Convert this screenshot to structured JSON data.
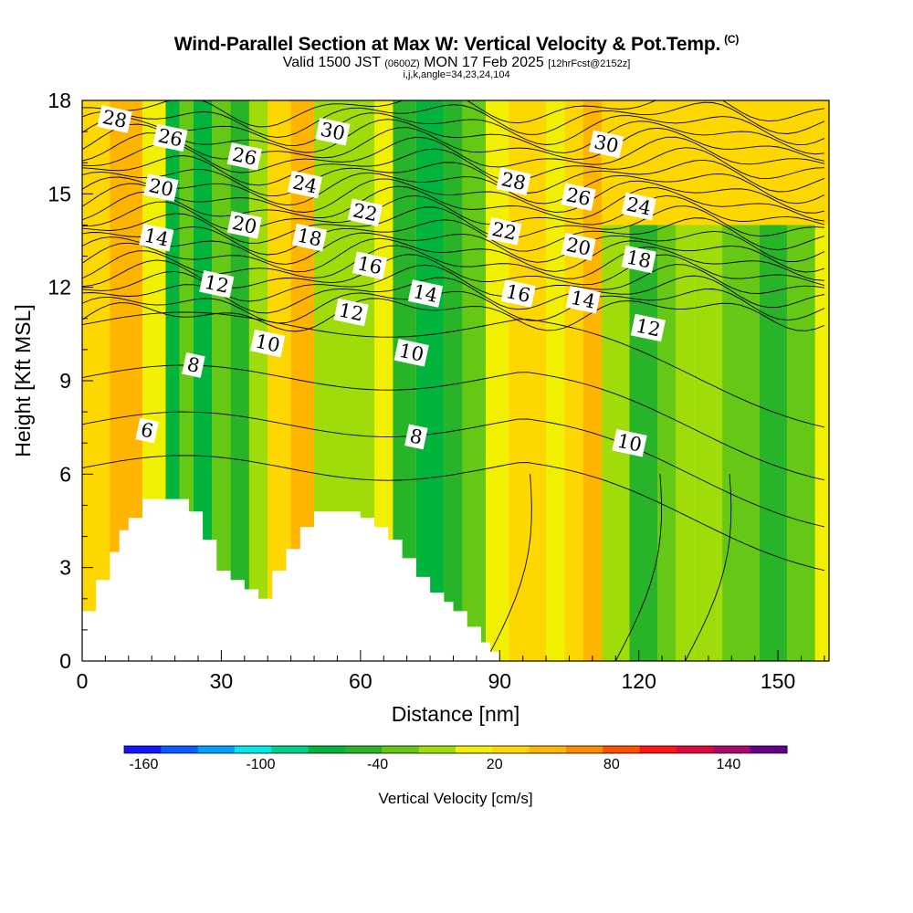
{
  "header": {
    "title": "Wind-Parallel Section at Max W: Vertical Velocity & Pot.Temp.",
    "copyright": "(C)",
    "valid_prefix": "Valid 1500 JST",
    "valid_utc": "(0600Z)",
    "valid_date": "MON 17 Feb 2025",
    "forecast_info": "[12hrFcst@2152z]",
    "grid_info": "i,j,k,angle=34,23,24,104"
  },
  "chart_data": {
    "type": "heatmap",
    "xlabel": "Distance [nm]",
    "ylabel": "Height [Kft MSL]",
    "xlim": [
      0,
      161
    ],
    "ylim": [
      0,
      18
    ],
    "x_ticks": [
      0,
      30,
      60,
      90,
      120,
      150
    ],
    "y_ticks": [
      0,
      3,
      6,
      9,
      12,
      15,
      18
    ],
    "colorbar": {
      "label": "Vertical Velocity [cm/s]",
      "min": -170,
      "max": 170,
      "tick_labels": [
        -160,
        -100,
        -40,
        20,
        80,
        140
      ],
      "colors": [
        "#1414ff",
        "#0a5cff",
        "#00a0ff",
        "#00e8e8",
        "#00d08c",
        "#00b43c",
        "#28b428",
        "#64c814",
        "#a0dc0a",
        "#f0f000",
        "#ffd700",
        "#ffb400",
        "#ff8c00",
        "#ff5000",
        "#ff1414",
        "#dc0a3c",
        "#aa0a6e",
        "#64008c"
      ]
    },
    "vertical_velocity_bands": [
      {
        "x": 0,
        "x_end": 6,
        "w": 30
      },
      {
        "x": 6,
        "x_end": 13,
        "w": 55
      },
      {
        "x": 13,
        "x_end": 18,
        "w": 15
      },
      {
        "x": 18,
        "x_end": 21,
        "w": -60
      },
      {
        "x": 21,
        "x_end": 24,
        "w": -20
      },
      {
        "x": 24,
        "x_end": 28,
        "w": -75
      },
      {
        "x": 28,
        "x_end": 32,
        "w": -20
      },
      {
        "x": 32,
        "x_end": 36,
        "w": -40
      },
      {
        "x": 36,
        "x_end": 40,
        "w": -10
      },
      {
        "x": 40,
        "x_end": 45,
        "w": 25
      },
      {
        "x": 45,
        "x_end": 50,
        "w": 50
      },
      {
        "x": 50,
        "x_end": 56,
        "w": -5
      },
      {
        "x": 56,
        "x_end": 63,
        "w": -15
      },
      {
        "x": 63,
        "x_end": 67,
        "w": 10
      },
      {
        "x": 67,
        "x_end": 72,
        "w": -40
      },
      {
        "x": 72,
        "x_end": 78,
        "w": -75
      },
      {
        "x": 78,
        "x_end": 82,
        "w": -45
      },
      {
        "x": 82,
        "x_end": 87,
        "w": -20
      },
      {
        "x": 87,
        "x_end": 92,
        "w": 5
      },
      {
        "x": 92,
        "x_end": 100,
        "w": 30
      },
      {
        "x": 100,
        "x_end": 104,
        "w": 15
      },
      {
        "x": 104,
        "x_end": 108,
        "w": 25
      },
      {
        "x": 108,
        "x_end": 112,
        "w": 40
      },
      {
        "x": 112,
        "x_end": 118,
        "w": -5
      },
      {
        "x": 118,
        "x_end": 124,
        "w": -45
      },
      {
        "x": 124,
        "x_end": 128,
        "w": -30
      },
      {
        "x": 128,
        "x_end": 132,
        "w": -10
      },
      {
        "x": 132,
        "x_end": 138,
        "w": -5
      },
      {
        "x": 138,
        "x_end": 146,
        "w": -25
      },
      {
        "x": 146,
        "x_end": 152,
        "w": -40
      },
      {
        "x": 152,
        "x_end": 158,
        "w": -20
      },
      {
        "x": 158,
        "x_end": 161,
        "w": 0
      }
    ],
    "upper_background": {
      "x": 112,
      "x_end": 161,
      "y": 14,
      "w": 25
    },
    "terrain": [
      [
        0,
        1.6
      ],
      [
        3,
        2.6
      ],
      [
        6,
        3.5
      ],
      [
        8,
        4.2
      ],
      [
        10,
        4.6
      ],
      [
        13,
        5.2
      ],
      [
        16,
        5.2
      ],
      [
        20,
        5.2
      ],
      [
        23,
        4.8
      ],
      [
        26,
        3.9
      ],
      [
        29,
        2.9
      ],
      [
        32,
        2.6
      ],
      [
        35,
        2.3
      ],
      [
        38,
        2.0
      ],
      [
        41,
        2.9
      ],
      [
        44,
        3.6
      ],
      [
        47,
        4.3
      ],
      [
        50,
        4.8
      ],
      [
        56,
        4.8
      ],
      [
        60,
        4.6
      ],
      [
        63,
        4.3
      ],
      [
        66,
        3.9
      ],
      [
        69,
        3.3
      ],
      [
        72,
        2.7
      ],
      [
        75,
        2.2
      ],
      [
        78,
        1.9
      ],
      [
        80,
        1.6
      ],
      [
        83,
        1.1
      ],
      [
        86,
        0.6
      ],
      [
        88,
        0.3
      ],
      [
        90,
        0
      ]
    ],
    "theta_contours_labeled": [
      {
        "label": "28",
        "x": 7,
        "y": 17.4
      },
      {
        "label": "26",
        "x": 19,
        "y": 16.8
      },
      {
        "label": "26",
        "x": 35,
        "y": 16.2
      },
      {
        "label": "30",
        "x": 54,
        "y": 17.0
      },
      {
        "label": "30",
        "x": 113,
        "y": 16.6
      },
      {
        "label": "20",
        "x": 17,
        "y": 15.2
      },
      {
        "label": "24",
        "x": 48,
        "y": 15.3
      },
      {
        "label": "28",
        "x": 93,
        "y": 15.4
      },
      {
        "label": "26",
        "x": 107,
        "y": 14.9
      },
      {
        "label": "24",
        "x": 120,
        "y": 14.6
      },
      {
        "label": "14",
        "x": 16,
        "y": 13.6
      },
      {
        "label": "20",
        "x": 35,
        "y": 14.0
      },
      {
        "label": "22",
        "x": 61,
        "y": 14.4
      },
      {
        "label": "22",
        "x": 91,
        "y": 13.8
      },
      {
        "label": "20",
        "x": 107,
        "y": 13.3
      },
      {
        "label": "18",
        "x": 49,
        "y": 13.6
      },
      {
        "label": "18",
        "x": 120,
        "y": 12.9
      },
      {
        "label": "16",
        "x": 62,
        "y": 12.7
      },
      {
        "label": "12",
        "x": 29,
        "y": 12.1
      },
      {
        "label": "14",
        "x": 74,
        "y": 11.8
      },
      {
        "label": "16",
        "x": 94,
        "y": 11.8
      },
      {
        "label": "14",
        "x": 108,
        "y": 11.6
      },
      {
        "label": "12",
        "x": 58,
        "y": 11.2
      },
      {
        "label": "12",
        "x": 122,
        "y": 10.7
      },
      {
        "label": "10",
        "x": 40,
        "y": 10.2
      },
      {
        "label": "10",
        "x": 71,
        "y": 9.9
      },
      {
        "label": "8",
        "x": 24,
        "y": 9.5
      },
      {
        "label": "6",
        "x": 14,
        "y": 7.4
      },
      {
        "label": "8",
        "x": 72,
        "y": 7.2
      },
      {
        "label": "10",
        "x": 118,
        "y": 7.0
      }
    ],
    "theta_contour_count_upper": 22,
    "grid": false
  }
}
